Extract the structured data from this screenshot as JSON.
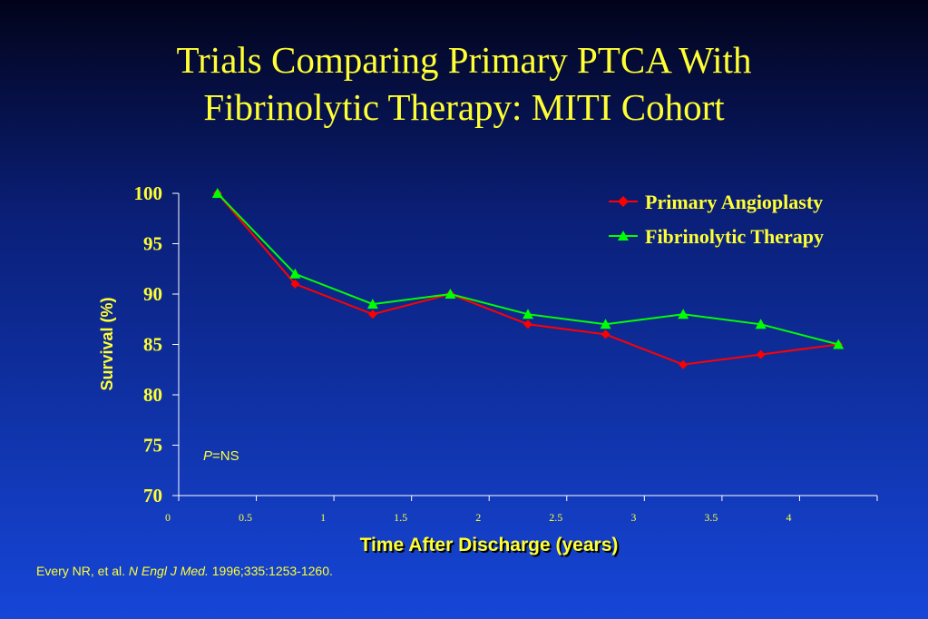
{
  "title": {
    "line1": "Trials Comparing Primary PTCA With",
    "line2": "Fibrinolytic Therapy: MITI Cohort"
  },
  "citation": {
    "authors": "Every NR, et al. ",
    "journal": "N Engl J Med.",
    "details": " 1996;335:1253-1260."
  },
  "pvalue": {
    "symbol": "P",
    "text": "=NS"
  },
  "colors": {
    "title": "#ffff33",
    "axis": "#ffffff",
    "primary_angioplasty": "#ff0000",
    "fibrinolytic_therapy": "#00ff00"
  },
  "chart_data": {
    "type": "line",
    "xlabel": "Time After Discharge (years)",
    "ylabel": "Survival (%)",
    "xlim": [
      0,
      4.5
    ],
    "ylim": [
      70,
      100
    ],
    "xticks": [
      0,
      0.5,
      1,
      1.5,
      2,
      2.5,
      3,
      3.5,
      4
    ],
    "xtick_labels": [
      "0",
      "0.5",
      "1",
      "1.5",
      "2",
      "2.5",
      "3",
      "3.5",
      "4"
    ],
    "yticks": [
      70,
      75,
      80,
      85,
      90,
      95,
      100
    ],
    "ytick_labels": [
      "70",
      "75",
      "80",
      "85",
      "90",
      "95",
      "100"
    ],
    "x": [
      0.25,
      0.75,
      1.25,
      1.75,
      2.25,
      2.75,
      3.25,
      3.75,
      4.25
    ],
    "legend_position": "top-right",
    "grid": false,
    "series": [
      {
        "name": "Primary Angioplasty",
        "color": "#ff0000",
        "marker": "diamond",
        "values": [
          100,
          91,
          88,
          90,
          87,
          86,
          83,
          84,
          85
        ]
      },
      {
        "name": "Fibrinolytic Therapy",
        "color": "#00ff00",
        "marker": "triangle",
        "values": [
          100,
          92,
          89,
          90,
          88,
          87,
          88,
          87,
          85
        ]
      }
    ]
  }
}
